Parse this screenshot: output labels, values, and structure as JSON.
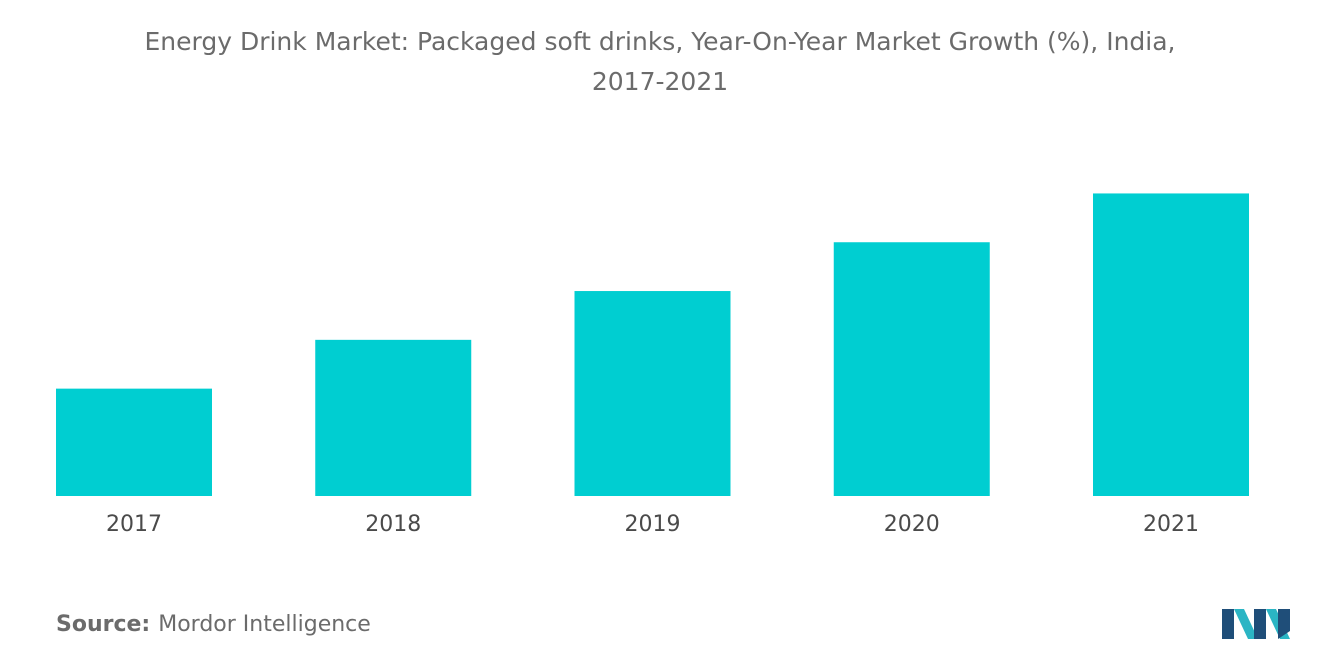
{
  "chart_data": {
    "type": "bar",
    "title_line1": "Energy Drink Market: Packaged soft drinks, Year-On-Year Market Growth (%), India,",
    "title_line2": "2017-2021",
    "categories": [
      "2017",
      "2018",
      "2019",
      "2020",
      "2021"
    ],
    "values": [
      2.2,
      3.2,
      4.2,
      5.2,
      6.2
    ],
    "ylim": [
      0,
      7.5
    ],
    "xlabel": "",
    "ylabel": "",
    "grid": false,
    "legend": "none",
    "bar_color": "#00ced1"
  },
  "source": {
    "label": "Source:",
    "text": "Mordor Intelligence"
  },
  "colors": {
    "logo_dark": "#1f4e79",
    "logo_light": "#2bb5c4"
  }
}
